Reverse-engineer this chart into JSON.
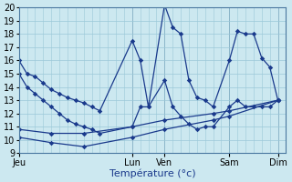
{
  "background_color": "#cce8f0",
  "grid_color": "#9ac8d8",
  "line_color": "#1a3a8c",
  "ylim": [
    9,
    20
  ],
  "yticks": [
    9,
    10,
    11,
    12,
    13,
    14,
    15,
    16,
    17,
    18,
    19,
    20
  ],
  "xlabel": "Température (°c)",
  "xlabel_fontsize": 8,
  "tick_fontsize": 7,
  "day_labels": [
    "Jeu",
    "Lun",
    "Ven",
    "Sam",
    "Dim"
  ],
  "day_positions": [
    0,
    14,
    18,
    26,
    32
  ],
  "xlim_end": 33,
  "series1_x": [
    0,
    1,
    2,
    3,
    4,
    5,
    6,
    7,
    8,
    9,
    10,
    14,
    15,
    16,
    18,
    19,
    20,
    21,
    22,
    23,
    24,
    26,
    27,
    28,
    29,
    30,
    31,
    32
  ],
  "series1_y": [
    16.0,
    15.0,
    14.8,
    14.3,
    13.8,
    13.5,
    13.2,
    13.0,
    12.8,
    12.5,
    12.2,
    17.5,
    16.0,
    12.5,
    20.2,
    18.5,
    18.0,
    14.5,
    13.2,
    13.0,
    12.5,
    16.0,
    18.2,
    18.0,
    18.0,
    16.2,
    15.5,
    13.0
  ],
  "series2_x": [
    0,
    1,
    2,
    3,
    4,
    5,
    6,
    7,
    8,
    9,
    10,
    14,
    15,
    16,
    18,
    19,
    20,
    21,
    22,
    23,
    24,
    26,
    27,
    28,
    29,
    30,
    31,
    32
  ],
  "series2_y": [
    15.0,
    14.0,
    13.5,
    13.0,
    12.5,
    12.0,
    11.5,
    11.2,
    11.0,
    10.8,
    10.5,
    11.0,
    12.5,
    12.5,
    14.5,
    12.5,
    11.8,
    11.2,
    10.8,
    11.0,
    11.0,
    12.5,
    13.0,
    12.5,
    12.5,
    12.5,
    12.5,
    13.0
  ],
  "series3_x": [
    0,
    4,
    8,
    14,
    18,
    24,
    26,
    32
  ],
  "series3_y": [
    10.8,
    10.5,
    10.5,
    11.0,
    11.5,
    12.0,
    12.2,
    13.0
  ],
  "series4_x": [
    0,
    4,
    8,
    14,
    18,
    24,
    26,
    32
  ],
  "series4_y": [
    10.2,
    9.8,
    9.5,
    10.2,
    10.8,
    11.5,
    11.8,
    13.0
  ]
}
